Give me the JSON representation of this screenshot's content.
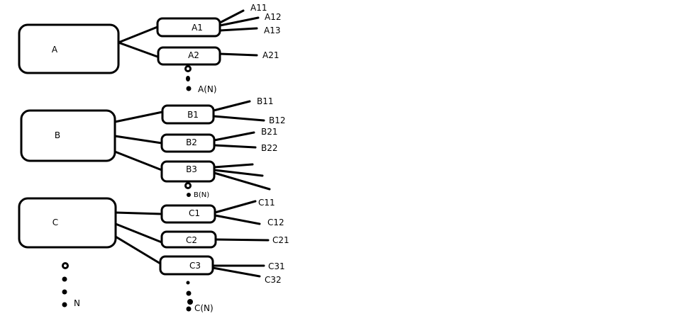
{
  "diagram": {
    "groups": [
      {
        "label": "A",
        "children": [
          {
            "label": "A1",
            "leaves": [
              "A11",
              "A12",
              "A13"
            ]
          },
          {
            "label": "A2",
            "leaves": [
              "A21"
            ]
          }
        ],
        "continuation_label": "A(N)"
      },
      {
        "label": "B",
        "children": [
          {
            "label": "B1",
            "leaves": [
              "B11",
              "B12"
            ]
          },
          {
            "label": "B2",
            "leaves": [
              "B21",
              "B22"
            ]
          },
          {
            "label": "B3",
            "leaves": [
              "",
              "",
              ""
            ]
          }
        ],
        "continuation_label": "B(N)"
      },
      {
        "label": "C",
        "children": [
          {
            "label": "C1",
            "leaves": [
              "C11",
              "C12"
            ]
          },
          {
            "label": "C2",
            "leaves": [
              "C21"
            ]
          },
          {
            "label": "C3",
            "leaves": [
              "C31",
              "C32"
            ]
          }
        ],
        "continuation_label": "C(N)"
      }
    ],
    "group_continuation_label": "N"
  }
}
